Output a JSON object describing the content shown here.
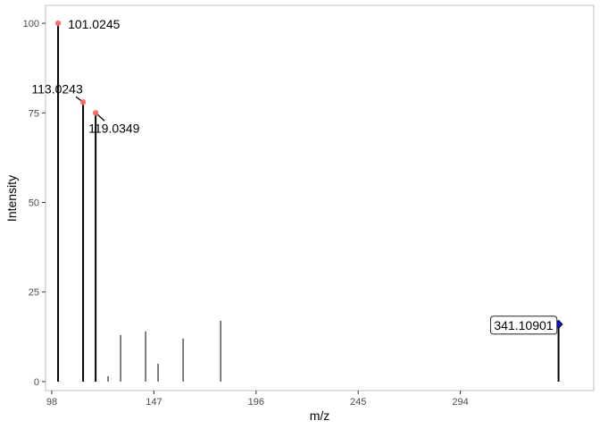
{
  "chart_data": {
    "type": "bar",
    "xlabel": "m/z",
    "ylabel": "Intensity",
    "xlim": [
      95,
      358
    ],
    "ylim": [
      -2.5,
      105
    ],
    "xticks": [
      98,
      147,
      196,
      245,
      294
    ],
    "xtick_labels": [
      "98",
      "147",
      "196",
      "245",
      "294"
    ],
    "yticks": [
      0,
      25,
      50,
      75,
      100
    ],
    "ytick_labels": [
      "0",
      "25",
      "50",
      "75",
      "100"
    ],
    "grid": false,
    "legend": "none",
    "peaks": [
      {
        "mz": 101.0245,
        "intensity": 100
      },
      {
        "mz": 113.0243,
        "intensity": 78
      },
      {
        "mz": 119.0349,
        "intensity": 75
      },
      {
        "mz": 125,
        "intensity": 1.5
      },
      {
        "mz": 131,
        "intensity": 13
      },
      {
        "mz": 143,
        "intensity": 14
      },
      {
        "mz": 149,
        "intensity": 5
      },
      {
        "mz": 161,
        "intensity": 12
      },
      {
        "mz": 179,
        "intensity": 17
      },
      {
        "mz": 341.10901,
        "intensity": 16
      }
    ],
    "annotations": [
      {
        "label": "101.0245",
        "mz": 101.0245,
        "intensity": 100,
        "marker": "circle",
        "color": "#f46d6d"
      },
      {
        "label": "113.0243",
        "mz": 113.0243,
        "intensity": 78,
        "marker": "circle",
        "color": "#f46d6d"
      },
      {
        "label": "119.0349",
        "mz": 119.0349,
        "intensity": 75,
        "marker": "circle",
        "color": "#f46d6d"
      },
      {
        "label": "341.10901",
        "mz": 341.10901,
        "intensity": 16,
        "marker": "diamond",
        "color": "#1010d0",
        "boxed": true
      }
    ],
    "colors": {
      "stem": "#000000",
      "panel_border": "#bfbfbf",
      "fragment_marker": "#f46d6d",
      "precursor_marker": "#1010d0"
    }
  }
}
